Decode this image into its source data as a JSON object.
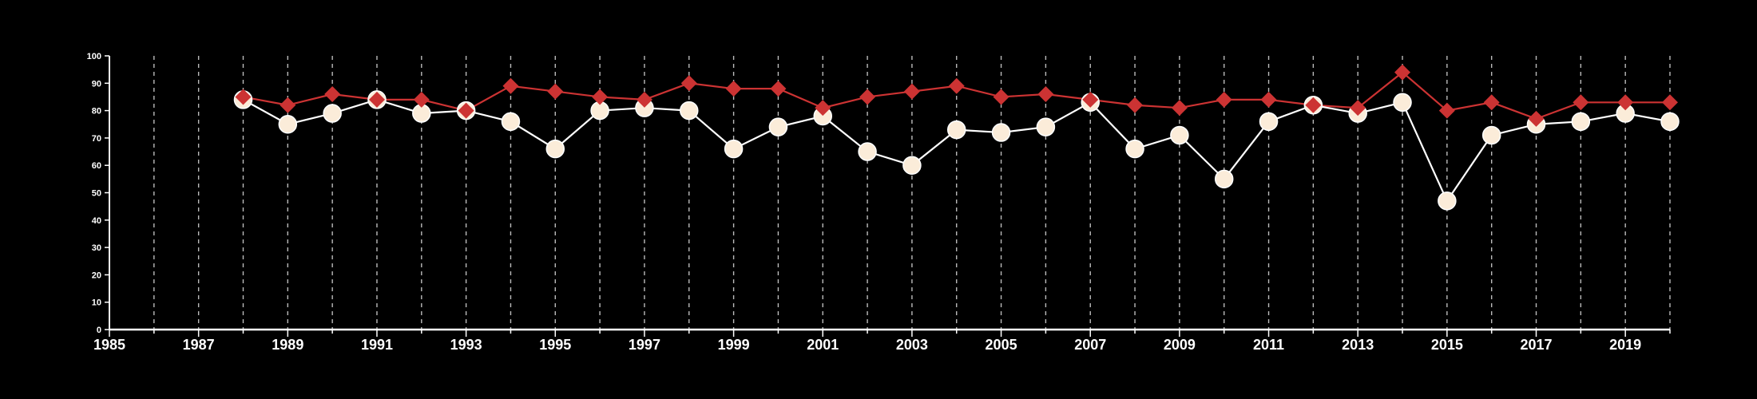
{
  "chart_data": {
    "type": "line",
    "title": "",
    "xlabel": "",
    "ylabel": "",
    "xlim": [
      1985,
      2020
    ],
    "ylim": [
      0,
      100
    ],
    "x_ticks": [
      "1985",
      "1987",
      "1989",
      "1991",
      "1993",
      "1995",
      "1997",
      "1999",
      "2001",
      "2003",
      "2005",
      "2007",
      "2009",
      "2011",
      "2013",
      "2015",
      "2017",
      "2019"
    ],
    "y_ticks": [
      "0",
      "10",
      "20",
      "30",
      "40",
      "50",
      "60",
      "70",
      "80",
      "90",
      "100"
    ],
    "grid": "vertical dashed at every year",
    "legend": "none",
    "x": [
      1988,
      1989,
      1990,
      1991,
      1992,
      1993,
      1994,
      1995,
      1996,
      1997,
      1998,
      1999,
      2000,
      2001,
      2002,
      2003,
      2004,
      2005,
      2006,
      2007,
      2008,
      2009,
      2010,
      2011,
      2012,
      2013,
      2014,
      2015,
      2016,
      2017,
      2018,
      2019,
      2020
    ],
    "series": [
      {
        "color": "#cc3333",
        "marker": "diamond",
        "values": [
          85,
          82,
          86,
          84,
          84,
          80,
          89,
          87,
          85,
          84,
          90,
          88,
          88,
          81,
          85,
          87,
          89,
          85,
          86,
          84,
          82,
          81,
          84,
          84,
          82,
          81,
          94,
          80,
          83,
          77,
          83,
          83,
          83
        ]
      },
      {
        "color": "#fbecd9",
        "line_color": "#ffffff",
        "marker": "circle",
        "values": [
          84,
          75,
          79,
          84,
          79,
          80,
          76,
          66,
          80,
          81,
          80,
          66,
          74,
          78,
          65,
          60,
          73,
          72,
          74,
          83,
          66,
          71,
          55,
          76,
          82,
          79,
          83,
          47,
          71,
          75,
          76,
          79,
          76
        ]
      }
    ]
  }
}
